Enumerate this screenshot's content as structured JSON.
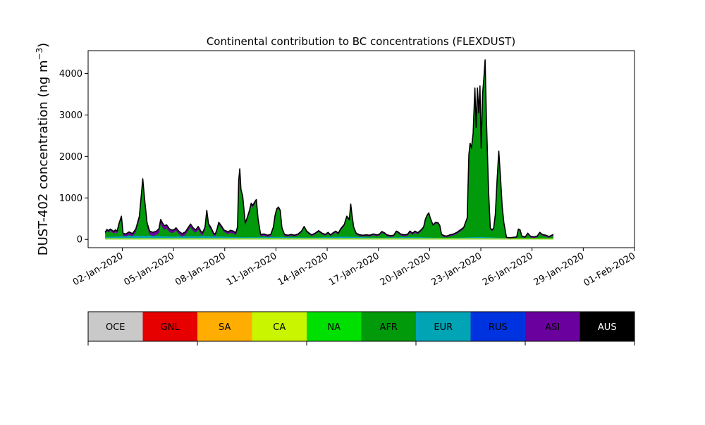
{
  "chart_data": {
    "type": "area",
    "title": "Continental contribution to BC concentrations (FLEXDUST)",
    "ylabel_main": "DUST-402 concentration (ng m",
    "ylabel_sup": "−3",
    "ylabel_close": ")",
    "xlabel": "",
    "x_start": "01-Jan-2020",
    "x_end": "31-Jan-2020",
    "xlim": [
      "31-Dec-2019",
      "01-Feb-2020"
    ],
    "ylim": [
      -200,
      4550
    ],
    "yticks": [
      0,
      1000,
      2000,
      3000,
      4000
    ],
    "xticks": [
      "02-Jan-2020",
      "05-Jan-2020",
      "08-Jan-2020",
      "11-Jan-2020",
      "14-Jan-2020",
      "17-Jan-2020",
      "20-Jan-2020",
      "23-Jan-2020",
      "26-Jan-2020",
      "29-Jan-2020",
      "01-Feb-2020"
    ],
    "total_series": [
      [
        0.0,
        170
      ],
      [
        0.1,
        240
      ],
      [
        0.2,
        210
      ],
      [
        0.3,
        250
      ],
      [
        0.4,
        220
      ],
      [
        0.5,
        190
      ],
      [
        0.6,
        230
      ],
      [
        0.7,
        200
      ],
      [
        0.8,
        370
      ],
      [
        0.95,
        560
      ],
      [
        1.05,
        150
      ],
      [
        1.2,
        130
      ],
      [
        1.4,
        180
      ],
      [
        1.6,
        140
      ],
      [
        1.8,
        260
      ],
      [
        2.0,
        560
      ],
      [
        2.12,
        1100
      ],
      [
        2.2,
        1460
      ],
      [
        2.3,
        1000
      ],
      [
        2.45,
        400
      ],
      [
        2.6,
        200
      ],
      [
        2.8,
        170
      ],
      [
        3.0,
        200
      ],
      [
        3.15,
        260
      ],
      [
        3.25,
        480
      ],
      [
        3.35,
        400
      ],
      [
        3.45,
        330
      ],
      [
        3.6,
        350
      ],
      [
        3.75,
        260
      ],
      [
        3.9,
        220
      ],
      [
        4.05,
        240
      ],
      [
        4.15,
        280
      ],
      [
        4.3,
        200
      ],
      [
        4.5,
        140
      ],
      [
        4.7,
        180
      ],
      [
        4.85,
        280
      ],
      [
        5.0,
        370
      ],
      [
        5.15,
        280
      ],
      [
        5.3,
        230
      ],
      [
        5.45,
        310
      ],
      [
        5.6,
        200
      ],
      [
        5.7,
        160
      ],
      [
        5.85,
        300
      ],
      [
        5.95,
        700
      ],
      [
        6.05,
        380
      ],
      [
        6.2,
        280
      ],
      [
        6.35,
        150
      ],
      [
        6.45,
        130
      ],
      [
        6.55,
        250
      ],
      [
        6.65,
        410
      ],
      [
        6.8,
        330
      ],
      [
        6.95,
        230
      ],
      [
        7.1,
        200
      ],
      [
        7.2,
        180
      ],
      [
        7.35,
        220
      ],
      [
        7.5,
        200
      ],
      [
        7.65,
        160
      ],
      [
        7.75,
        300
      ],
      [
        7.82,
        1420
      ],
      [
        7.88,
        1700
      ],
      [
        7.95,
        1200
      ],
      [
        8.05,
        1050
      ],
      [
        8.2,
        400
      ],
      [
        8.3,
        500
      ],
      [
        8.45,
        700
      ],
      [
        8.55,
        870
      ],
      [
        8.65,
        820
      ],
      [
        8.75,
        900
      ],
      [
        8.85,
        960
      ],
      [
        8.95,
        500
      ],
      [
        9.1,
        120
      ],
      [
        9.3,
        130
      ],
      [
        9.5,
        100
      ],
      [
        9.7,
        120
      ],
      [
        9.85,
        300
      ],
      [
        9.95,
        580
      ],
      [
        10.05,
        740
      ],
      [
        10.15,
        780
      ],
      [
        10.25,
        700
      ],
      [
        10.35,
        280
      ],
      [
        10.5,
        120
      ],
      [
        10.7,
        100
      ],
      [
        10.9,
        120
      ],
      [
        11.1,
        100
      ],
      [
        11.3,
        130
      ],
      [
        11.5,
        200
      ],
      [
        11.65,
        310
      ],
      [
        11.8,
        200
      ],
      [
        11.95,
        150
      ],
      [
        12.1,
        110
      ],
      [
        12.3,
        150
      ],
      [
        12.5,
        210
      ],
      [
        12.7,
        150
      ],
      [
        12.9,
        120
      ],
      [
        13.05,
        170
      ],
      [
        13.2,
        110
      ],
      [
        13.35,
        160
      ],
      [
        13.5,
        200
      ],
      [
        13.65,
        150
      ],
      [
        13.8,
        260
      ],
      [
        14.0,
        360
      ],
      [
        14.15,
        560
      ],
      [
        14.3,
        480
      ],
      [
        14.38,
        850
      ],
      [
        14.45,
        600
      ],
      [
        14.55,
        300
      ],
      [
        14.7,
        150
      ],
      [
        14.9,
        110
      ],
      [
        15.1,
        100
      ],
      [
        15.3,
        110
      ],
      [
        15.5,
        100
      ],
      [
        15.7,
        130
      ],
      [
        15.9,
        110
      ],
      [
        16.05,
        120
      ],
      [
        16.2,
        190
      ],
      [
        16.35,
        160
      ],
      [
        16.5,
        110
      ],
      [
        16.7,
        90
      ],
      [
        16.9,
        100
      ],
      [
        17.05,
        200
      ],
      [
        17.15,
        180
      ],
      [
        17.3,
        130
      ],
      [
        17.5,
        110
      ],
      [
        17.7,
        120
      ],
      [
        17.85,
        200
      ],
      [
        18.0,
        150
      ],
      [
        18.15,
        200
      ],
      [
        18.3,
        160
      ],
      [
        18.5,
        230
      ],
      [
        18.65,
        300
      ],
      [
        18.75,
        480
      ],
      [
        18.85,
        580
      ],
      [
        18.95,
        640
      ],
      [
        19.05,
        500
      ],
      [
        19.2,
        350
      ],
      [
        19.35,
        410
      ],
      [
        19.5,
        400
      ],
      [
        19.6,
        330
      ],
      [
        19.7,
        120
      ],
      [
        19.85,
        90
      ],
      [
        20.0,
        80
      ],
      [
        20.2,
        110
      ],
      [
        20.4,
        130
      ],
      [
        20.6,
        170
      ],
      [
        20.8,
        230
      ],
      [
        21.0,
        290
      ],
      [
        21.2,
        520
      ],
      [
        21.3,
        2050
      ],
      [
        21.37,
        2320
      ],
      [
        21.45,
        2200
      ],
      [
        21.55,
        2550
      ],
      [
        21.65,
        3650
      ],
      [
        21.72,
        2700
      ],
      [
        21.8,
        3650
      ],
      [
        21.88,
        3050
      ],
      [
        21.95,
        3700
      ],
      [
        22.02,
        2200
      ],
      [
        22.1,
        3500
      ],
      [
        22.18,
        3900
      ],
      [
        22.25,
        4330
      ],
      [
        22.32,
        3000
      ],
      [
        22.45,
        1200
      ],
      [
        22.55,
        280
      ],
      [
        22.65,
        230
      ],
      [
        22.75,
        270
      ],
      [
        22.85,
        600
      ],
      [
        22.95,
        1400
      ],
      [
        23.05,
        2130
      ],
      [
        23.15,
        1500
      ],
      [
        23.25,
        800
      ],
      [
        23.35,
        400
      ],
      [
        23.5,
        50
      ],
      [
        23.7,
        40
      ],
      [
        23.9,
        50
      ],
      [
        24.1,
        60
      ],
      [
        24.2,
        250
      ],
      [
        24.3,
        230
      ],
      [
        24.4,
        80
      ],
      [
        24.6,
        60
      ],
      [
        24.75,
        150
      ],
      [
        24.9,
        80
      ],
      [
        25.1,
        60
      ],
      [
        25.3,
        80
      ],
      [
        25.45,
        170
      ],
      [
        25.6,
        120
      ],
      [
        25.8,
        100
      ],
      [
        26.0,
        70
      ],
      [
        26.15,
        100
      ],
      [
        26.25,
        120
      ]
    ],
    "baseline_series": [
      [
        0.0,
        60
      ],
      [
        2.0,
        90
      ],
      [
        4.0,
        70
      ],
      [
        6.0,
        80
      ],
      [
        8.0,
        50
      ],
      [
        10.0,
        60
      ],
      [
        12.0,
        45
      ],
      [
        14.0,
        70
      ],
      [
        16.0,
        40
      ],
      [
        18.0,
        60
      ],
      [
        20.0,
        30
      ],
      [
        22.0,
        60
      ],
      [
        24.0,
        20
      ],
      [
        26.25,
        20
      ]
    ],
    "purple_band": [
      [
        0.0,
        40
      ],
      [
        1.0,
        60
      ],
      [
        2.0,
        80
      ],
      [
        3.0,
        90
      ],
      [
        3.3,
        110
      ],
      [
        4.0,
        60
      ],
      [
        5.0,
        80
      ],
      [
        6.0,
        60
      ],
      [
        7.0,
        50
      ],
      [
        8.0,
        70
      ],
      [
        9.0,
        40
      ],
      [
        10.0,
        40
      ],
      [
        11.0,
        30
      ],
      [
        12.0,
        30
      ],
      [
        13.0,
        30
      ],
      [
        14.0,
        40
      ],
      [
        15.0,
        30
      ],
      [
        16.0,
        30
      ],
      [
        17.0,
        30
      ],
      [
        18.0,
        40
      ],
      [
        19.0,
        30
      ],
      [
        20.0,
        30
      ],
      [
        21.0,
        40
      ],
      [
        22.0,
        40
      ],
      [
        23.0,
        30
      ],
      [
        24.0,
        20
      ],
      [
        25.0,
        30
      ],
      [
        26.25,
        30
      ]
    ],
    "colorbar": {
      "labels": [
        "OCE",
        "GNL",
        "SA",
        "CA",
        "NA",
        "AFR",
        "EUR",
        "RUS",
        "ASI",
        "AUS"
      ],
      "colors": [
        "#c9c9c9",
        "#e60000",
        "#ffad00",
        "#c9f500",
        "#00e000",
        "#009a0a",
        "#00a4b5",
        "#0033e0",
        "#6a009e",
        "#000000"
      ],
      "label_colors": [
        "#000000",
        "#000000",
        "#000000",
        "#000000",
        "#000000",
        "#000000",
        "#000000",
        "#000000",
        "#000000",
        "#ffffff"
      ]
    },
    "colors": {
      "total_fill": "#009a0a",
      "outline": "#000000",
      "purple": "#6a009e",
      "teal": "#00a4b5",
      "yellow": "#c9f500"
    }
  }
}
